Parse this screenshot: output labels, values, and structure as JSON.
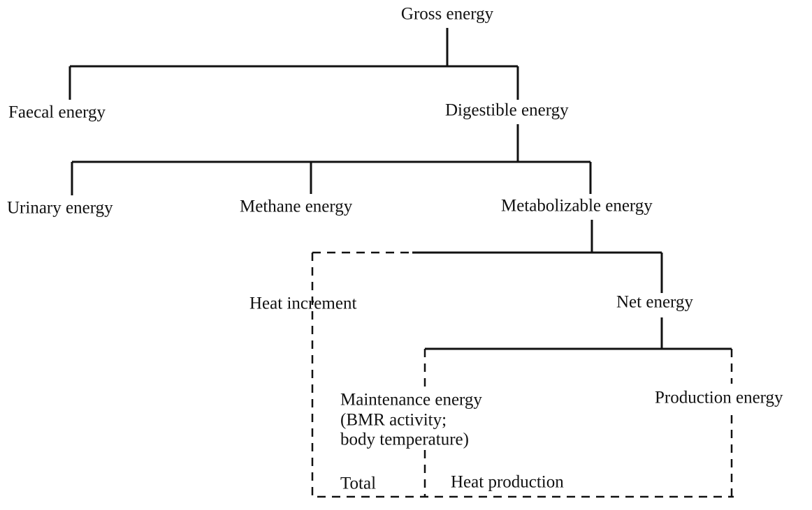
{
  "nodes": [
    {
      "label": "Gross energy"
    },
    {
      "label": "Faecal energy"
    },
    {
      "label": "Digestible energy"
    },
    {
      "label": "Urinary energy"
    },
    {
      "label": "Methane energy"
    },
    {
      "label": "Metabolizable energy"
    },
    {
      "label": "Heat increment"
    },
    {
      "label": "Net energy"
    },
    {
      "label": [
        "Maintenance energy",
        "(BMR activity;",
        "body temperature)"
      ]
    },
    {
      "label": "Production energy"
    },
    {
      "label": "Total"
    },
    {
      "label": "Heat production"
    }
  ]
}
